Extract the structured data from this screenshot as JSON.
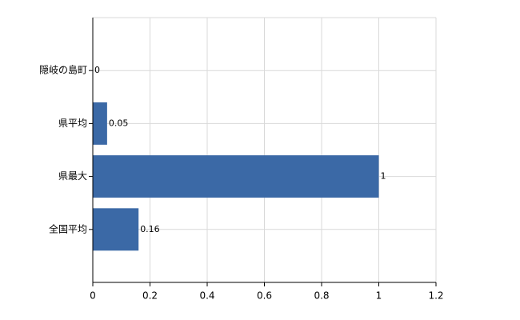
{
  "chart_data": {
    "type": "bar",
    "orientation": "horizontal",
    "categories": [
      "隠岐の島町",
      "県平均",
      "県最大",
      "全国平均"
    ],
    "values": [
      0,
      0.05,
      1,
      0.16
    ],
    "color": "#3b69a6",
    "xlim": [
      0,
      1.2
    ],
    "xticks": [
      0,
      0.2,
      0.4,
      0.6,
      0.8,
      1,
      1.2
    ],
    "grid": true
  }
}
